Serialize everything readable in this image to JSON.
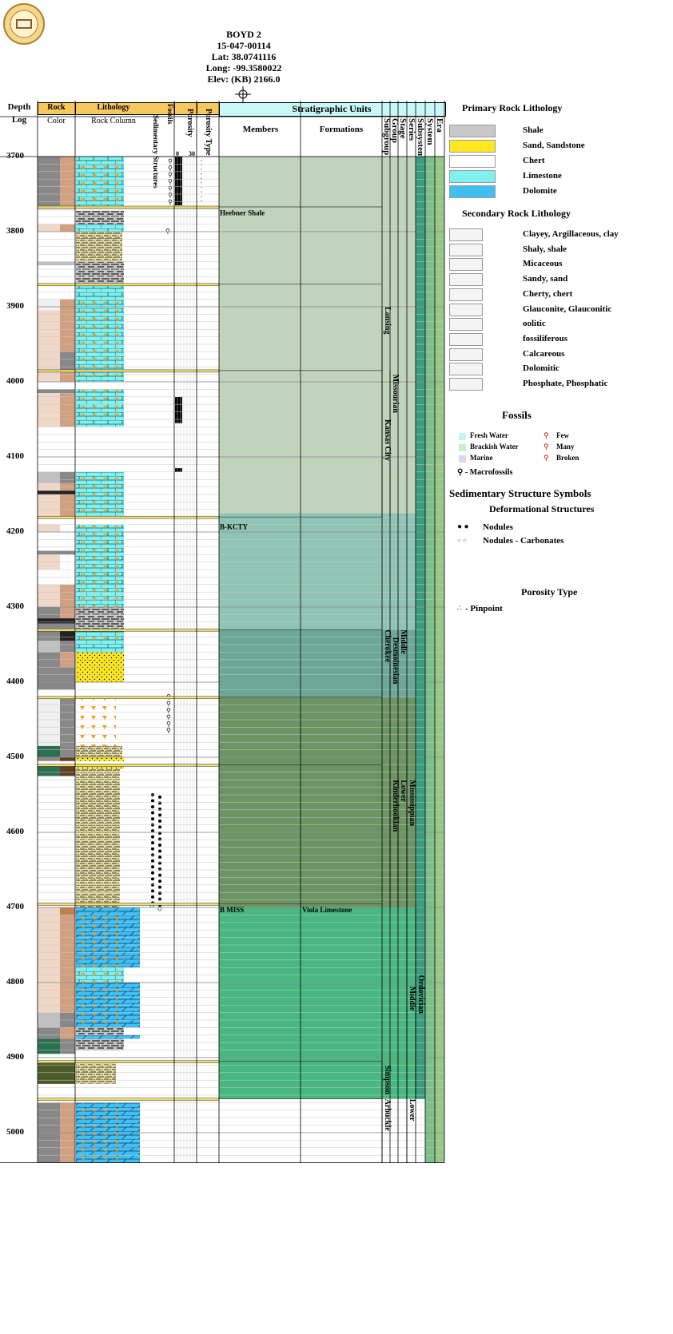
{
  "well": {
    "name": "BOYD 2",
    "api": "15-047-00114",
    "lat": "Lat: 38.0741116",
    "long": "Long: -99.3580022",
    "elev": "Elev: (KB) 2166.0"
  },
  "columns": {
    "depth_log": "Depth Log",
    "rock": "Rock",
    "color": "Color",
    "lithology": "Lithology",
    "rock_column": "Rock Column",
    "sed_structures": "Sedimentary Structures",
    "fossils": "Fossils",
    "porosity": "Porosity",
    "porosity_type": "Porosity Type",
    "porosity_scale_min": "0",
    "porosity_scale_max": "30",
    "strat_units": "Stratigraphic Units",
    "members": "Members",
    "formations": "Formations",
    "subgroup": "Subgroup",
    "group": "Group",
    "stage": "Stage",
    "series": "Series",
    "subsystem": "Subsystem",
    "system": "System",
    "era": "Era"
  },
  "depth_ticks": [
    "3700",
    "3800",
    "3900",
    "4000",
    "4100",
    "4200",
    "4300",
    "4400",
    "4500",
    "4600",
    "4700",
    "4800",
    "4900",
    "5000"
  ],
  "members": [
    {
      "label": "Heebner Shale",
      "depth": 3772
    },
    {
      "label": "B-KCTY",
      "depth": 4190
    },
    {
      "label": "B MISS",
      "depth": 4700
    }
  ],
  "formations": [
    {
      "label": "Viola Limestone",
      "depth": 4700
    }
  ],
  "strat_vertical": [
    {
      "label": "Lansing",
      "col": "subgroup",
      "top": 3900,
      "bottom": 3970
    },
    {
      "label": "Kansas City",
      "col": "subgroup",
      "top": 4050,
      "bottom": 4130
    },
    {
      "label": "Missourian",
      "col": "group",
      "top": 3990,
      "bottom": 4060
    },
    {
      "label": "Cherokee",
      "col": "subgroup",
      "top": 4330,
      "bottom": 4385
    },
    {
      "label": "Desmoinesian",
      "col": "group",
      "top": 4340,
      "bottom": 4410
    },
    {
      "label": "Middle",
      "col": "stage",
      "top": 4330,
      "bottom": 4370
    },
    {
      "label": "Kinderhookian",
      "col": "group",
      "top": 4530,
      "bottom": 4600
    },
    {
      "label": "Lower",
      "col": "stage",
      "top": 4530,
      "bottom": 4565
    },
    {
      "label": "Mississippian",
      "col": "series",
      "top": 4530,
      "bottom": 4605
    },
    {
      "label": "Middle",
      "col": "series",
      "top": 4805,
      "bottom": 4840
    },
    {
      "label": "Ordovician",
      "col": "subsystem",
      "top": 4790,
      "bottom": 4850
    },
    {
      "label": "Simpson",
      "col": "subgroup",
      "top": 4910,
      "bottom": 4955
    },
    {
      "label": "Arbuckle",
      "col": "subgroup",
      "top": 4955,
      "bottom": 5000
    },
    {
      "label": "Lower",
      "col": "series",
      "top": 4955,
      "bottom": 4990
    }
  ],
  "legend": {
    "primary_title": "Primary Rock Lithology",
    "primary": [
      {
        "label": "Shale",
        "pattern": "shale"
      },
      {
        "label": "Sand, Sandstone",
        "pattern": "sand"
      },
      {
        "label": "Chert",
        "pattern": "chert"
      },
      {
        "label": "Limestone",
        "pattern": "limestone"
      },
      {
        "label": "Dolomite",
        "pattern": "dolomite"
      }
    ],
    "secondary_title": "Secondary Rock Lithology",
    "secondary": [
      {
        "label": "Clayey, Argillaceous, clay"
      },
      {
        "label": "Shaly, shale"
      },
      {
        "label": "Micaceous"
      },
      {
        "label": "Sandy, sand"
      },
      {
        "label": "Cherty, chert"
      },
      {
        "label": "Glauconite, Glauconitic"
      },
      {
        "label": "oolitic"
      },
      {
        "label": "fossiliferous"
      },
      {
        "label": "Calcareous"
      },
      {
        "label": "Dolomitic"
      },
      {
        "label": "Phosphate, Phosphatic"
      }
    ],
    "fossils_title": "Fossils",
    "fossil_env": [
      {
        "label": "Fresh Water",
        "color": "#c8f4f4"
      },
      {
        "label": "Brackish Water",
        "color": "#c8f0c8"
      },
      {
        "label": "Marine",
        "color": "#d8d8f4"
      }
    ],
    "fossil_abund": [
      "Few",
      "Many",
      "Broken"
    ],
    "macrofossils": "- Macrofossils",
    "sed_title": "Sedimentary Structure Symbols",
    "deform_title": "Deformational Structures",
    "nodules": "Nodules",
    "nodules_carb": "Nodules - Carbonates",
    "porosity_type_title": "Porosity Type",
    "pinpoint": "- Pinpoint"
  },
  "colors": {
    "header_orange": "#f8c860",
    "header_cyan": "#c8f8f8",
    "kc_green": "#c0d4bc",
    "cherokee_teal": "#90c4b4",
    "miss_olive": "#6c9464",
    "ord_green": "#48b880",
    "limestone": "#80f0f0",
    "dolomite": "#40c0f0",
    "sand": "#ffe820"
  }
}
